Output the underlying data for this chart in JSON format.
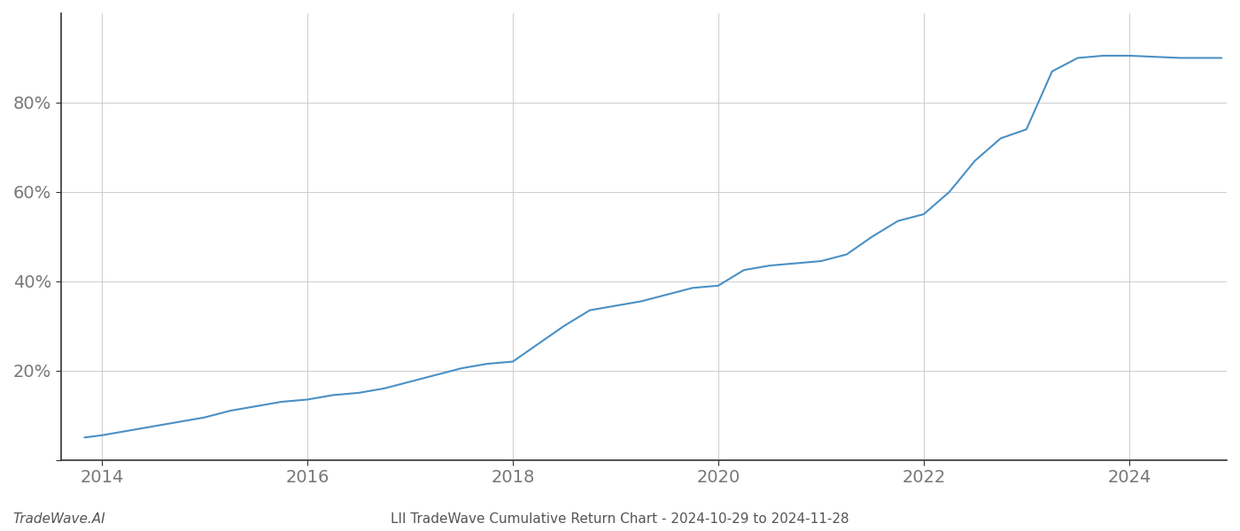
{
  "title": "LII TradeWave Cumulative Return Chart - 2024-10-29 to 2024-11-28",
  "watermark": "TradeWave.AI",
  "line_color": "#4a90c4",
  "background_color": "#ffffff",
  "grid_color": "#cccccc",
  "x_values": [
    2013.83,
    2014.0,
    2014.25,
    2014.5,
    2014.75,
    2015.0,
    2015.25,
    2015.5,
    2015.75,
    2016.0,
    2016.25,
    2016.5,
    2016.75,
    2017.0,
    2017.25,
    2017.5,
    2017.75,
    2018.0,
    2018.25,
    2018.5,
    2018.75,
    2019.0,
    2019.25,
    2019.5,
    2019.75,
    2020.0,
    2020.25,
    2020.5,
    2020.75,
    2021.0,
    2021.25,
    2021.5,
    2021.75,
    2022.0,
    2022.25,
    2022.5,
    2022.75,
    2023.0,
    2023.25,
    2023.5,
    2023.75,
    2024.0,
    2024.5,
    2024.9
  ],
  "y_values": [
    5.0,
    5.5,
    6.5,
    7.5,
    8.5,
    9.5,
    11.0,
    12.0,
    13.0,
    13.5,
    14.5,
    15.0,
    16.0,
    17.5,
    19.0,
    20.5,
    21.5,
    22.0,
    26.0,
    30.0,
    33.5,
    34.5,
    35.5,
    37.0,
    38.5,
    39.0,
    42.5,
    43.5,
    44.0,
    44.5,
    46.0,
    50.0,
    53.5,
    55.0,
    60.0,
    67.0,
    72.0,
    74.0,
    87.0,
    90.0,
    90.5,
    90.5,
    90.0,
    90.0
  ],
  "xlim": [
    2013.6,
    2024.95
  ],
  "ylim": [
    0,
    100
  ],
  "xticks": [
    2014,
    2016,
    2018,
    2020,
    2022,
    2024
  ],
  "yticks": [
    0,
    20,
    40,
    60,
    80
  ],
  "ytick_labels": [
    "",
    "20%",
    "40%",
    "60%",
    "80%"
  ],
  "tick_fontsize": 14,
  "label_fontsize": 11,
  "title_fontsize": 11,
  "line_width": 1.5,
  "axis_color": "#888888",
  "spine_color": "#333333"
}
